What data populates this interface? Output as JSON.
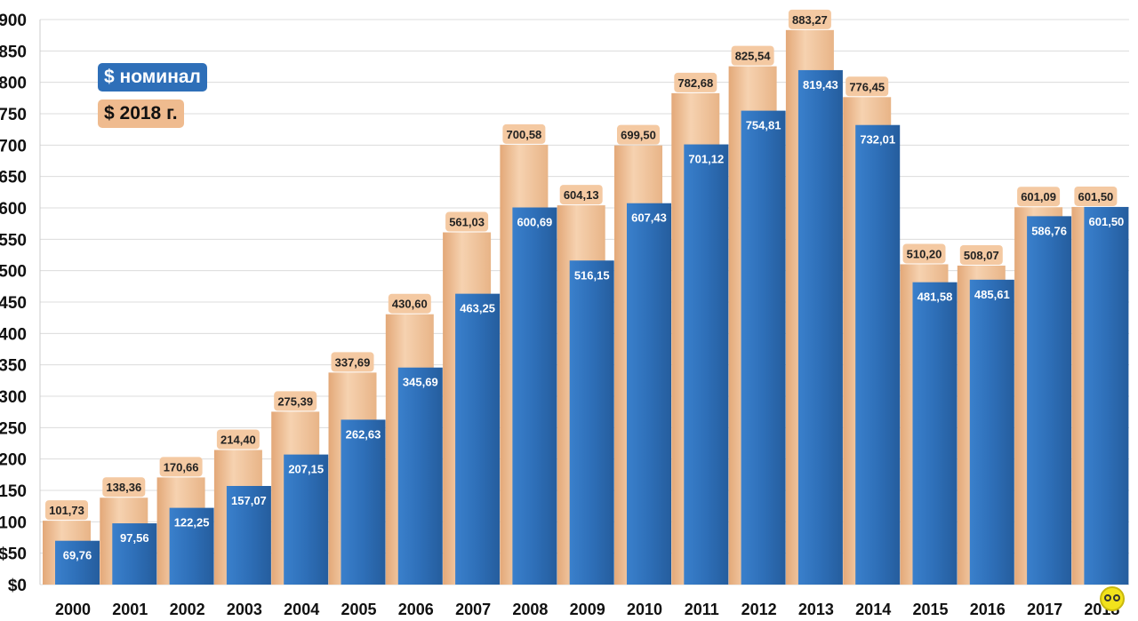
{
  "chart_data": {
    "type": "bar",
    "categories": [
      "2000",
      "2001",
      "2002",
      "2003",
      "2004",
      "2005",
      "2006",
      "2007",
      "2008",
      "2009",
      "2010",
      "2011",
      "2012",
      "2013",
      "2014",
      "2015",
      "2016",
      "2017",
      "2018"
    ],
    "series": [
      {
        "name": "$ 2018 г.",
        "color": "#efbb8f",
        "values": [
          101.73,
          138.36,
          170.66,
          214.4,
          275.39,
          337.69,
          430.6,
          561.03,
          700.58,
          604.13,
          699.5,
          782.68,
          825.54,
          883.27,
          776.45,
          510.2,
          508.07,
          601.09,
          601.5
        ]
      },
      {
        "name": "$ номинал",
        "color": "#2e6fb8",
        "values": [
          69.76,
          97.56,
          122.25,
          157.07,
          207.15,
          262.63,
          345.69,
          463.25,
          600.69,
          516.15,
          607.43,
          701.12,
          754.81,
          819.43,
          732.01,
          481.58,
          485.61,
          586.76,
          601.5
        ]
      }
    ],
    "ylim": [
      0,
      900
    ],
    "yticks": [
      0,
      50,
      100,
      150,
      200,
      250,
      300,
      350,
      400,
      450,
      500,
      550,
      600,
      650,
      700,
      750,
      800,
      850,
      900
    ],
    "ytick_prefix": "$",
    "decimal_separator": ",",
    "grid": true,
    "legend_position": "top-left"
  },
  "legend": {
    "nominal": "$ номинал",
    "real": "$ 2018 г."
  },
  "logo": {
    "icon": "watermark-logo-icon"
  }
}
